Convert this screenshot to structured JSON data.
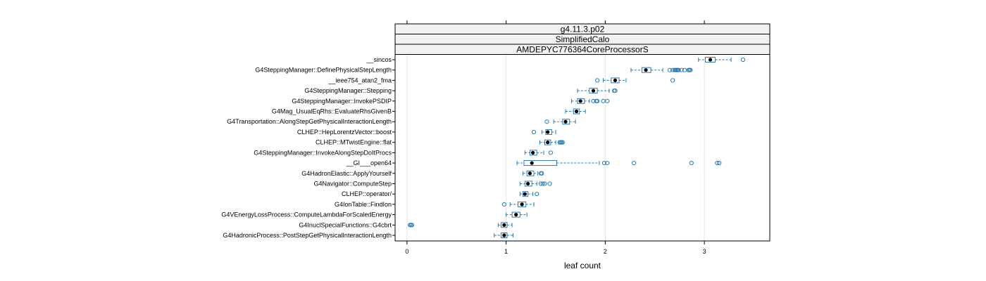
{
  "chart_data": {
    "type": "boxplot",
    "strips": [
      "g4.11.3.p02",
      "SimplifiedCalo",
      "AMDEPYC776364CoreProcessorS"
    ],
    "xlabel": "leaf count",
    "ylabel": "",
    "xlim": [
      -0.12,
      3.66
    ],
    "xticks": [
      0,
      1,
      2,
      3
    ],
    "xticklabels": [
      "0",
      "1",
      "2",
      "3"
    ],
    "grid": "vertical",
    "colors": {
      "box": "#2a7ab0",
      "median": "#000000",
      "strip_bg": "#f2f2f2",
      "grid": "#e6e6e6",
      "frame": "#000000"
    },
    "categories": [
      "__sincos",
      "G4SteppingManager::DefinePhysicalStepLength",
      "__ieee754_atan2_fma",
      "G4SteppingManager::Stepping",
      "G4SteppingManager::InvokePSDIP",
      "G4Mag_UsualEqRhs::EvaluateRhsGivenB",
      "G4Transportation::AlongStepGetPhysicalInteractionLength",
      "CLHEP::HepLorentzVector::boost",
      "CLHEP::MTwistEngine::flat",
      "G4SteppingManager::InvokeAlongStepDoItProcs",
      "__GI___open64",
      "G4HadronElastic::ApplyYourself",
      "G4Navigator::ComputeStep",
      "CLHEP::operator/",
      "G4IonTable::FindIon",
      "G4VEnergyLossProcess::ComputeLambdaForScaledEnergy",
      "G4InuclSpecialFunctions::G4cbrt",
      "G4HadronicProcess::PostStepGetPhysicalInteractionLength"
    ],
    "boxes": [
      {
        "whisker_lo": 2.94,
        "q1": 3.01,
        "median": 3.06,
        "q3": 3.11,
        "whisker_hi": 3.27,
        "outliers": [
          3.39
        ]
      },
      {
        "whisker_lo": 2.26,
        "q1": 2.37,
        "median": 2.41,
        "q3": 2.46,
        "whisker_hi": 2.58,
        "outliers": [
          2.65,
          2.68,
          2.7,
          2.71,
          2.72,
          2.73,
          2.74,
          2.77,
          2.8,
          2.84,
          2.85,
          2.86
        ]
      },
      {
        "whisker_lo": 1.98,
        "q1": 2.06,
        "median": 2.1,
        "q3": 2.14,
        "whisker_hi": 2.21,
        "outliers": [
          1.92,
          2.68
        ]
      },
      {
        "whisker_lo": 1.72,
        "q1": 1.84,
        "median": 1.88,
        "q3": 1.92,
        "whisker_hi": 2.04,
        "outliers": [
          2.09,
          2.1
        ]
      },
      {
        "whisker_lo": 1.66,
        "q1": 1.72,
        "median": 1.75,
        "q3": 1.79,
        "whisker_hi": 1.84,
        "outliers": [
          1.88,
          1.91,
          1.92,
          1.98,
          2.02
        ]
      },
      {
        "whisker_lo": 1.6,
        "q1": 1.68,
        "median": 1.71,
        "q3": 1.74,
        "whisker_hi": 1.8,
        "outliers": []
      },
      {
        "whisker_lo": 1.48,
        "q1": 1.57,
        "median": 1.6,
        "q3": 1.64,
        "whisker_hi": 1.7,
        "outliers": [
          1.41
        ]
      },
      {
        "whisker_lo": 1.36,
        "q1": 1.4,
        "median": 1.42,
        "q3": 1.46,
        "whisker_hi": 1.5,
        "outliers": [
          1.28
        ]
      },
      {
        "whisker_lo": 1.34,
        "q1": 1.39,
        "median": 1.42,
        "q3": 1.45,
        "whisker_hi": 1.5,
        "outliers": [
          1.54,
          1.55,
          1.56,
          1.57
        ]
      },
      {
        "whisker_lo": 1.19,
        "q1": 1.24,
        "median": 1.27,
        "q3": 1.31,
        "whisker_hi": 1.38,
        "outliers": [
          1.45
        ]
      },
      {
        "whisker_lo": 1.11,
        "q1": 1.18,
        "median": 1.26,
        "q3": 1.51,
        "whisker_hi": 1.94,
        "outliers": [
          1.99,
          2.02,
          2.29,
          2.87,
          3.13,
          3.15
        ]
      },
      {
        "whisker_lo": 1.17,
        "q1": 1.21,
        "median": 1.24,
        "q3": 1.28,
        "whisker_hi": 1.32,
        "outliers": [
          1.35,
          1.36
        ]
      },
      {
        "whisker_lo": 1.14,
        "q1": 1.19,
        "median": 1.22,
        "q3": 1.26,
        "whisker_hi": 1.31,
        "outliers": [
          1.35,
          1.37,
          1.39,
          1.44
        ]
      },
      {
        "whisker_lo": 1.14,
        "q1": 1.17,
        "median": 1.19,
        "q3": 1.22,
        "whisker_hi": 1.27,
        "outliers": [
          1.31
        ]
      },
      {
        "whisker_lo": 1.04,
        "q1": 1.12,
        "median": 1.16,
        "q3": 1.2,
        "whisker_hi": 1.28,
        "outliers": [
          0.98
        ]
      },
      {
        "whisker_lo": 1.0,
        "q1": 1.06,
        "median": 1.1,
        "q3": 1.14,
        "whisker_hi": 1.21,
        "outliers": []
      },
      {
        "whisker_lo": 0.92,
        "q1": 0.95,
        "median": 0.98,
        "q3": 1.01,
        "whisker_hi": 1.06,
        "outliers": [
          0.03,
          0.04,
          0.05
        ]
      },
      {
        "whisker_lo": 0.88,
        "q1": 0.95,
        "median": 0.98,
        "q3": 1.01,
        "whisker_hi": 1.07,
        "outliers": []
      }
    ]
  }
}
